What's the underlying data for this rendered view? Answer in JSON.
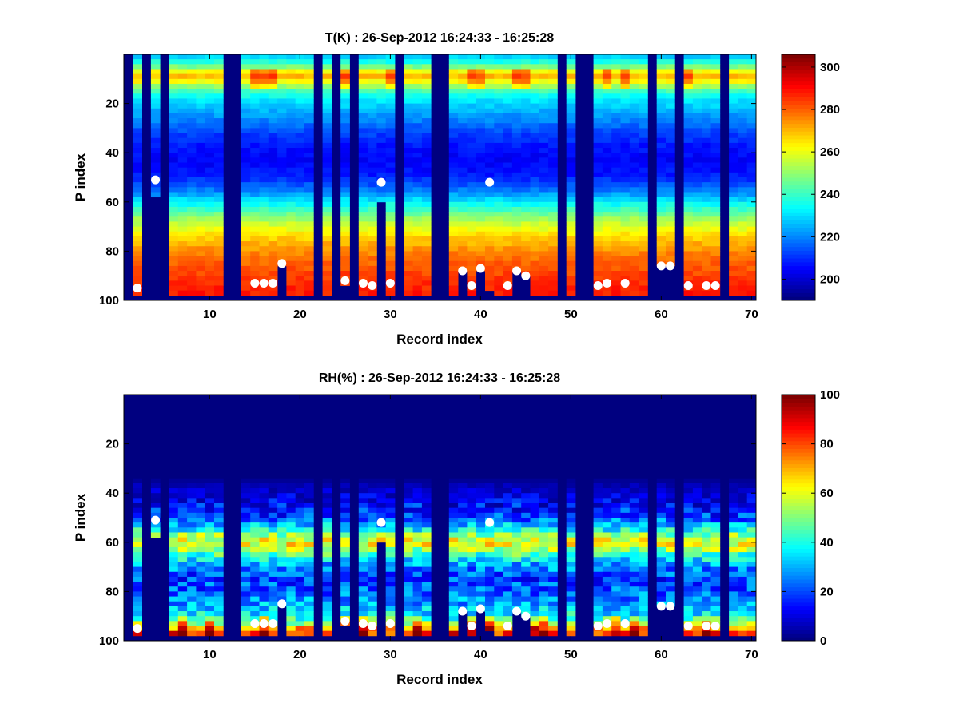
{
  "chart_data": [
    {
      "type": "heatmap",
      "title": "T(K) : 26-Sep-2012 16:24:33 - 16:25:28",
      "xlabel": "Record index",
      "ylabel": "P index",
      "xlim": [
        0.5,
        70.5
      ],
      "ylim": [
        0,
        100
      ],
      "y_reversed": true,
      "xticks": [
        10,
        20,
        30,
        40,
        50,
        60,
        70
      ],
      "yticks": [
        20,
        40,
        60,
        80,
        100
      ],
      "colormap": "jet",
      "colorbar": {
        "range": [
          190,
          306
        ],
        "ticks": [
          200,
          220,
          240,
          260,
          280,
          300
        ]
      },
      "missing_records": [
        1,
        3,
        5,
        12,
        13,
        22,
        24,
        26,
        31,
        35,
        36,
        49,
        51,
        52,
        59,
        62,
        67
      ],
      "partial_records": [
        {
          "record": 2,
          "valid_to": 98
        },
        {
          "record": 4,
          "valid_to": 58
        },
        {
          "record": 18,
          "valid_to": 85
        },
        {
          "record": 25,
          "valid_to": 93
        },
        {
          "record": 29,
          "valid_to": 59
        },
        {
          "record": 38,
          "valid_to": 88
        },
        {
          "record": 40,
          "valid_to": 87
        },
        {
          "record": 41,
          "valid_to": 95
        },
        {
          "record": 44,
          "valid_to": 88
        },
        {
          "record": 45,
          "valid_to": 90
        },
        {
          "record": 60,
          "valid_to": 86
        },
        {
          "record": 61,
          "valid_to": 86
        }
      ],
      "profile": [
        {
          "p": 0,
          "value": 225
        },
        {
          "p": 4,
          "value": 240
        },
        {
          "p": 7,
          "value": 262
        },
        {
          "p": 9,
          "value": 270
        },
        {
          "p": 11,
          "value": 262
        },
        {
          "p": 14,
          "value": 245
        },
        {
          "p": 18,
          "value": 232
        },
        {
          "p": 25,
          "value": 222
        },
        {
          "p": 32,
          "value": 212
        },
        {
          "p": 38,
          "value": 206
        },
        {
          "p": 44,
          "value": 204
        },
        {
          "p": 50,
          "value": 208
        },
        {
          "p": 56,
          "value": 220
        },
        {
          "p": 62,
          "value": 238
        },
        {
          "p": 68,
          "value": 254
        },
        {
          "p": 73,
          "value": 265
        },
        {
          "p": 80,
          "value": 276
        },
        {
          "p": 88,
          "value": 283
        },
        {
          "p": 94,
          "value": 287
        },
        {
          "p": 98,
          "value": 289
        }
      ],
      "warm_records": [
        15,
        16,
        17,
        25,
        30,
        39,
        40,
        44,
        45,
        54,
        56,
        63
      ],
      "markers": [
        {
          "x": 2,
          "y": 95
        },
        {
          "x": 4,
          "y": 51
        },
        {
          "x": 15,
          "y": 93
        },
        {
          "x": 16,
          "y": 93
        },
        {
          "x": 17,
          "y": 93
        },
        {
          "x": 18,
          "y": 85
        },
        {
          "x": 25,
          "y": 92
        },
        {
          "x": 27,
          "y": 93
        },
        {
          "x": 28,
          "y": 94
        },
        {
          "x": 29,
          "y": 52
        },
        {
          "x": 30,
          "y": 93
        },
        {
          "x": 38,
          "y": 88
        },
        {
          "x": 39,
          "y": 94
        },
        {
          "x": 40,
          "y": 87
        },
        {
          "x": 41,
          "y": 52
        },
        {
          "x": 43,
          "y": 94
        },
        {
          "x": 44,
          "y": 88
        },
        {
          "x": 45,
          "y": 90
        },
        {
          "x": 53,
          "y": 94
        },
        {
          "x": 54,
          "y": 93
        },
        {
          "x": 56,
          "y": 93
        },
        {
          "x": 60,
          "y": 86
        },
        {
          "x": 61,
          "y": 86
        },
        {
          "x": 63,
          "y": 94
        },
        {
          "x": 65,
          "y": 94
        },
        {
          "x": 66,
          "y": 94
        }
      ]
    },
    {
      "type": "heatmap",
      "title": "RH(%) : 26-Sep-2012 16:24:33 - 16:25:28",
      "xlabel": "Record index",
      "ylabel": "P index",
      "xlim": [
        0.5,
        70.5
      ],
      "ylim": [
        0,
        100
      ],
      "y_reversed": true,
      "xticks": [
        10,
        20,
        30,
        40,
        50,
        60,
        70
      ],
      "yticks": [
        20,
        40,
        60,
        80,
        100
      ],
      "colormap": "jet",
      "colorbar": {
        "range": [
          0,
          100
        ],
        "ticks": [
          0,
          20,
          40,
          60,
          80,
          100
        ]
      },
      "missing_records": [
        1,
        3,
        5,
        12,
        13,
        22,
        24,
        26,
        31,
        35,
        36,
        49,
        51,
        52,
        59,
        62,
        67
      ],
      "partial_records": [
        {
          "record": 2,
          "valid_to": 98
        },
        {
          "record": 4,
          "valid_to": 58
        },
        {
          "record": 18,
          "valid_to": 85
        },
        {
          "record": 25,
          "valid_to": 93
        },
        {
          "record": 29,
          "valid_to": 59
        },
        {
          "record": 38,
          "valid_to": 88
        },
        {
          "record": 40,
          "valid_to": 87
        },
        {
          "record": 41,
          "valid_to": 95
        },
        {
          "record": 44,
          "valid_to": 88
        },
        {
          "record": 45,
          "valid_to": 90
        },
        {
          "record": 60,
          "valid_to": 86
        },
        {
          "record": 61,
          "valid_to": 86
        }
      ],
      "profile": [
        {
          "p": 0,
          "value": 0
        },
        {
          "p": 34,
          "value": 1
        },
        {
          "p": 38,
          "value": 6
        },
        {
          "p": 44,
          "value": 12
        },
        {
          "p": 50,
          "value": 20
        },
        {
          "p": 55,
          "value": 38
        },
        {
          "p": 58,
          "value": 58
        },
        {
          "p": 61,
          "value": 62
        },
        {
          "p": 64,
          "value": 48
        },
        {
          "p": 68,
          "value": 32
        },
        {
          "p": 74,
          "value": 18
        },
        {
          "p": 80,
          "value": 22
        },
        {
          "p": 86,
          "value": 30
        },
        {
          "p": 90,
          "value": 38
        },
        {
          "p": 93,
          "value": 55
        },
        {
          "p": 96,
          "value": 82
        },
        {
          "p": 98,
          "value": 86
        }
      ],
      "humid_records": [
        7,
        10,
        16,
        25,
        27,
        33,
        39,
        40,
        41,
        44,
        46,
        47,
        52,
        55,
        57,
        65
      ],
      "markers": [
        {
          "x": 2,
          "y": 95
        },
        {
          "x": 4,
          "y": 51
        },
        {
          "x": 15,
          "y": 93
        },
        {
          "x": 16,
          "y": 93
        },
        {
          "x": 17,
          "y": 93
        },
        {
          "x": 18,
          "y": 85
        },
        {
          "x": 25,
          "y": 92
        },
        {
          "x": 27,
          "y": 93
        },
        {
          "x": 28,
          "y": 94
        },
        {
          "x": 29,
          "y": 52
        },
        {
          "x": 30,
          "y": 93
        },
        {
          "x": 38,
          "y": 88
        },
        {
          "x": 39,
          "y": 94
        },
        {
          "x": 40,
          "y": 87
        },
        {
          "x": 41,
          "y": 52
        },
        {
          "x": 43,
          "y": 94
        },
        {
          "x": 44,
          "y": 88
        },
        {
          "x": 45,
          "y": 90
        },
        {
          "x": 53,
          "y": 94
        },
        {
          "x": 54,
          "y": 93
        },
        {
          "x": 56,
          "y": 93
        },
        {
          "x": 60,
          "y": 86
        },
        {
          "x": 61,
          "y": 86
        },
        {
          "x": 63,
          "y": 94
        },
        {
          "x": 65,
          "y": 94
        },
        {
          "x": 66,
          "y": 94
        }
      ]
    }
  ]
}
